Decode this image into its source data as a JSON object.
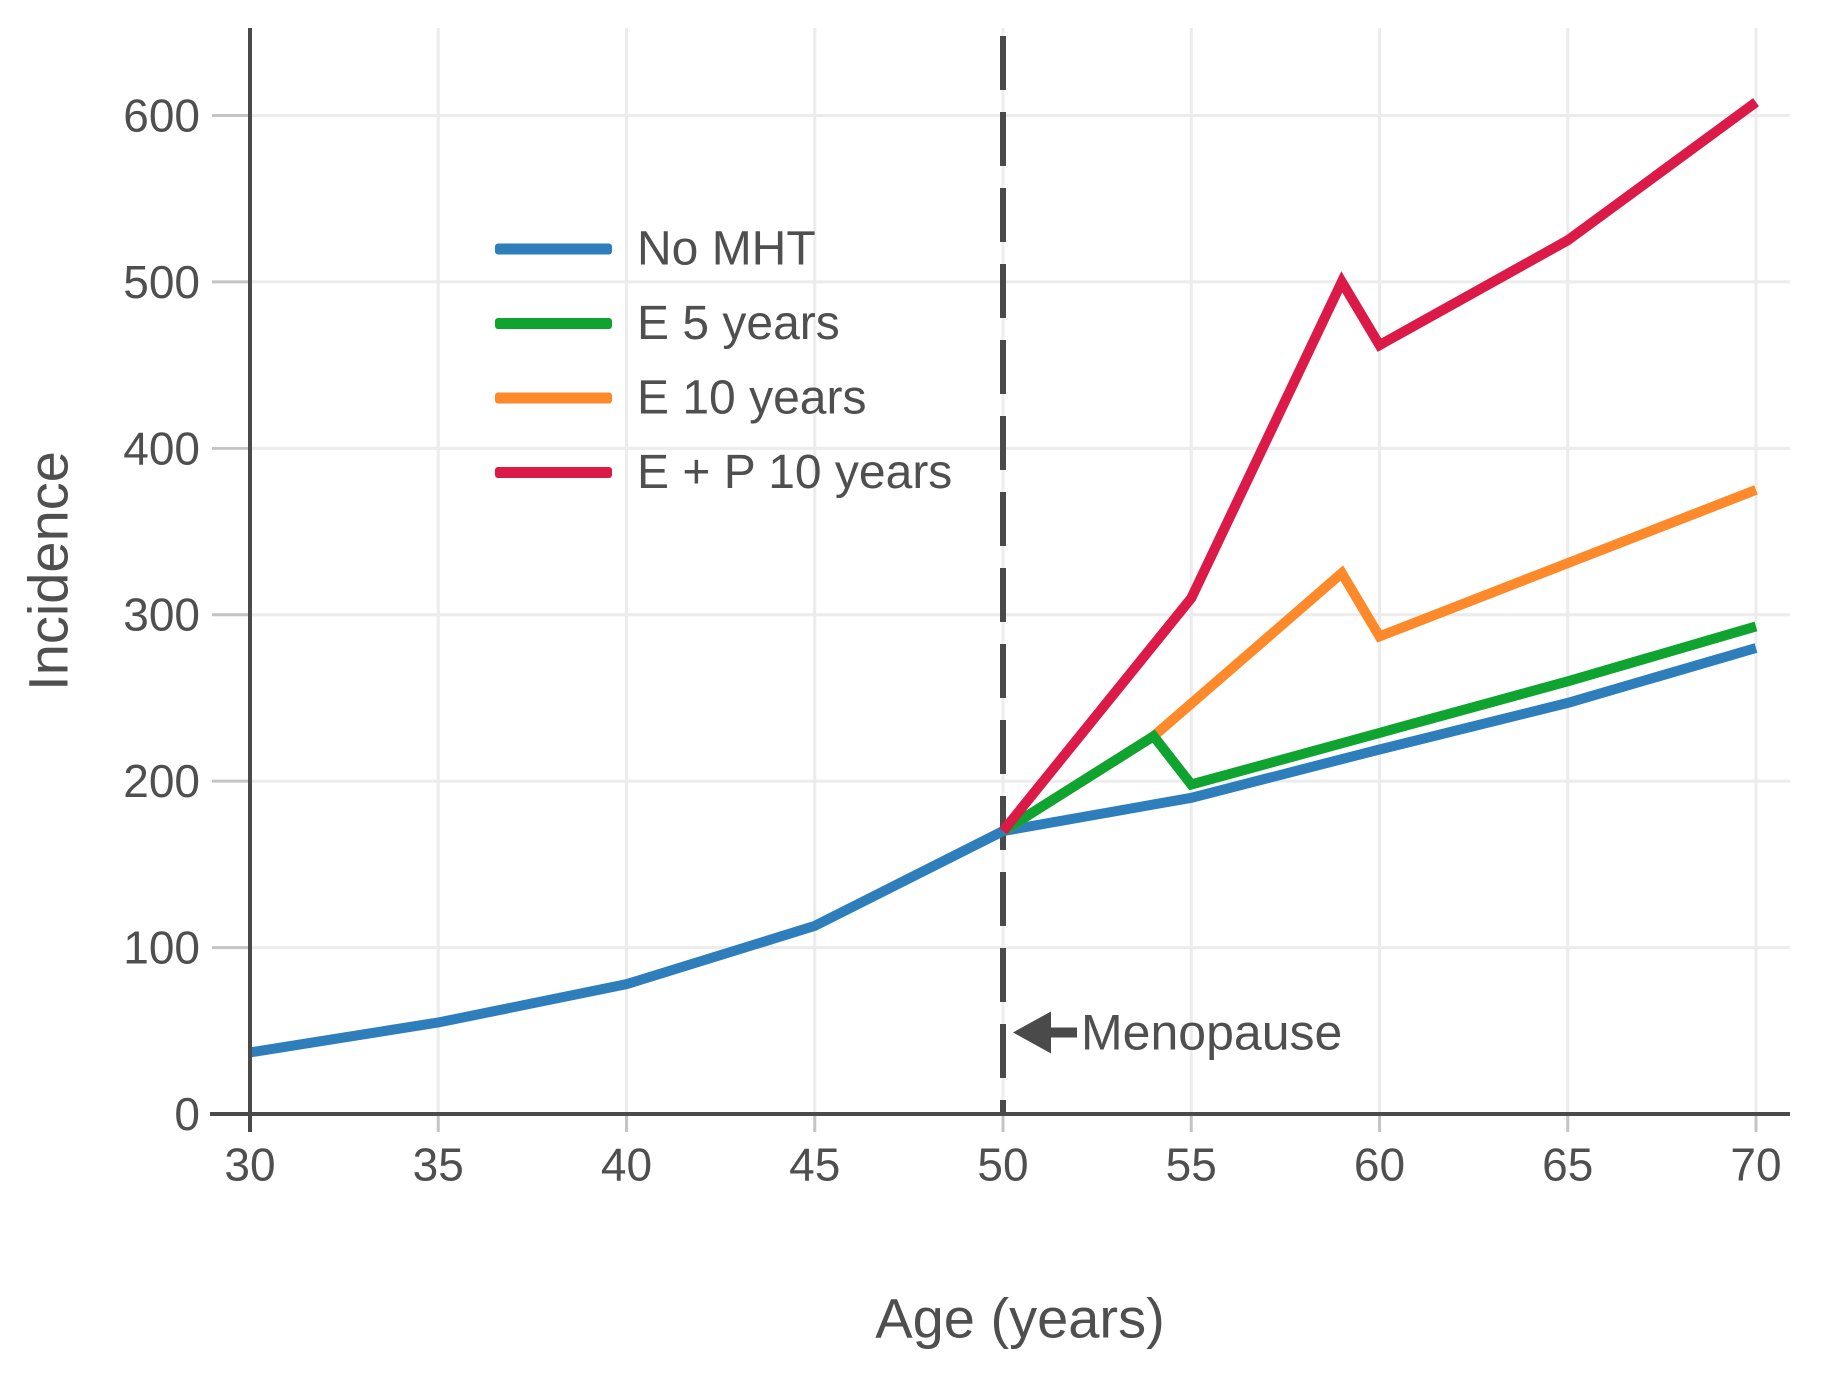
{
  "chart_data": {
    "type": "line",
    "title": "",
    "xlabel": "Age (years)",
    "ylabel": "Incidence",
    "xlim": [
      30,
      70
    ],
    "ylim": [
      0,
      650
    ],
    "xticks": [
      30,
      35,
      40,
      45,
      50,
      55,
      60,
      65,
      70
    ],
    "yticks": [
      0,
      100,
      200,
      300,
      400,
      500,
      600
    ],
    "grid": true,
    "legend_position": "upper-left",
    "menopause_line": {
      "x": 50,
      "style": "dashed"
    },
    "annotation": {
      "label": "Menopause",
      "arrow": "left",
      "x": 50,
      "y": 49
    },
    "series": [
      {
        "name": "No MHT",
        "color": "#2e7ebc",
        "z_order": 1,
        "points": [
          [
            30,
            37
          ],
          [
            35,
            55
          ],
          [
            40,
            78
          ],
          [
            45,
            113
          ],
          [
            50,
            170
          ],
          [
            55,
            190
          ],
          [
            60,
            219
          ],
          [
            65,
            247
          ],
          [
            70,
            280
          ]
        ]
      },
      {
        "name": "E 5 years",
        "color": "#0fa32f",
        "z_order": 3,
        "points": [
          [
            50,
            170
          ],
          [
            54,
            227
          ],
          [
            55,
            198
          ],
          [
            60,
            229
          ],
          [
            65,
            260
          ],
          [
            70,
            293
          ]
        ]
      },
      {
        "name": "E 10 years",
        "color": "#fd8a2a",
        "z_order": 2,
        "points": [
          [
            50,
            170
          ],
          [
            54,
            227
          ],
          [
            59,
            325
          ],
          [
            60,
            287
          ],
          [
            65,
            331
          ],
          [
            70,
            375
          ]
        ]
      },
      {
        "name": "E + P 10 years",
        "color": "#dc1a47",
        "z_order": 4,
        "points": [
          [
            50,
            170
          ],
          [
            55,
            310
          ],
          [
            59,
            500
          ],
          [
            60,
            462
          ],
          [
            65,
            525
          ],
          [
            70,
            608
          ]
        ]
      }
    ],
    "legend": [
      "No MHT",
      "E 5 years",
      "E 10 years",
      "E + P 10 years"
    ]
  },
  "colors": {
    "text": "#4f4f4f",
    "grid": "#ececec",
    "spine": "#4a4a4a",
    "tick": "#c4c4c4",
    "background": "#ffffff"
  }
}
